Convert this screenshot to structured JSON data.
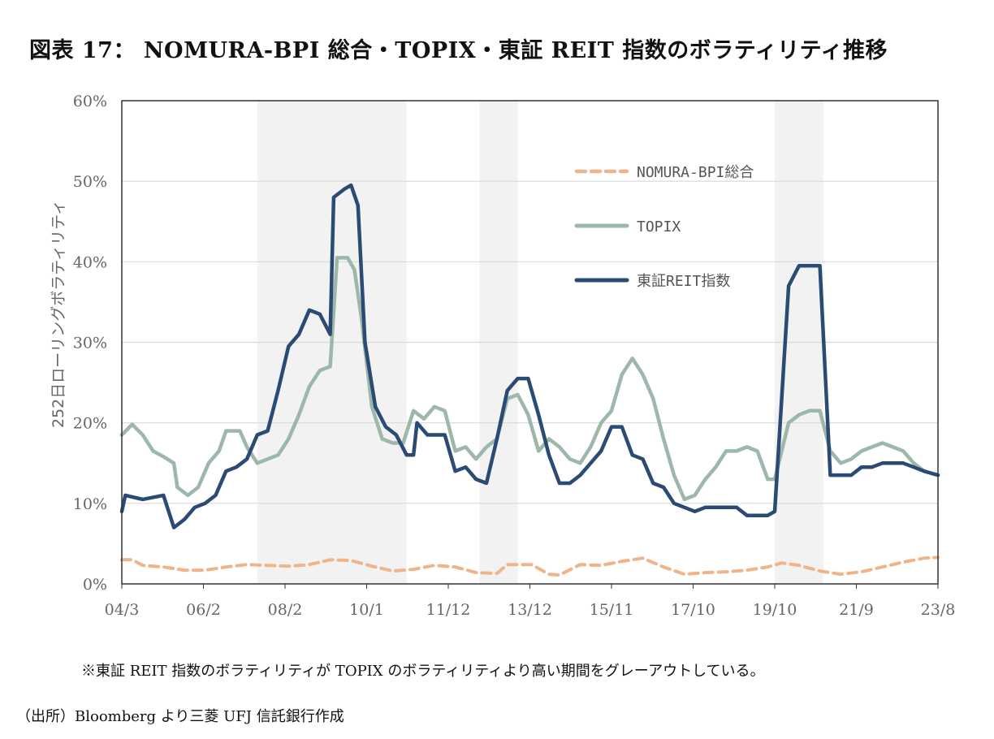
{
  "header": {
    "title": "図表 17： NOMURA-BPI 総合・TOPIX・東証 REIT 指数のボラティリティ推移"
  },
  "footer": {
    "note": "※東証 REIT 指数のボラティリティが TOPIX のボラティリティより高い期間をグレーアウトしている。",
    "source": "（出所）Bloomberg より三菱 UFJ 信託銀行作成"
  },
  "colors": {
    "nomura": "#efb48a",
    "topix": "#9db8aa",
    "reit": "#2b4a74",
    "shade": "#f2f2f2",
    "grid": "#d9d9d9"
  },
  "chart_data": {
    "type": "line",
    "title": "図表 17： NOMURA-BPI 総合・TOPIX・東証 REIT 指数のボラティリティ推移",
    "xlabel": "",
    "ylabel": "252日ローリングボラティリティ",
    "x_ticks": [
      "04/3",
      "06/2",
      "08/2",
      "10/1",
      "11/12",
      "13/12",
      "15/11",
      "17/10",
      "19/10",
      "21/9",
      "23/8"
    ],
    "x_range": [
      "2004-03",
      "2023-10"
    ],
    "ylim": [
      0,
      60
    ],
    "y_ticks": [
      "0%",
      "10%",
      "20%",
      "30%",
      "40%",
      "50%",
      "60%"
    ],
    "grid": true,
    "legend_position": "top-right",
    "shaded_periods": [
      [
        "2007-06",
        "2011-01"
      ],
      [
        "2012-10",
        "2013-09"
      ],
      [
        "2019-11",
        "2021-01"
      ]
    ],
    "series": [
      {
        "name": "NOMURA-BPI総合",
        "style": "dashed",
        "points": [
          [
            "2004-03",
            3.0
          ],
          [
            "2004-06",
            3.0
          ],
          [
            "2004-09",
            2.3
          ],
          [
            "2005-03",
            2.1
          ],
          [
            "2005-09",
            1.7
          ],
          [
            "2006-03",
            1.7
          ],
          [
            "2006-09",
            2.1
          ],
          [
            "2007-03",
            2.4
          ],
          [
            "2007-09",
            2.3
          ],
          [
            "2008-03",
            2.2
          ],
          [
            "2008-09",
            2.4
          ],
          [
            "2009-03",
            3.0
          ],
          [
            "2009-09",
            2.9
          ],
          [
            "2010-03",
            2.2
          ],
          [
            "2010-09",
            1.6
          ],
          [
            "2011-03",
            1.8
          ],
          [
            "2011-09",
            2.3
          ],
          [
            "2012-03",
            2.1
          ],
          [
            "2012-09",
            1.4
          ],
          [
            "2013-03",
            1.3
          ],
          [
            "2013-06",
            2.4
          ],
          [
            "2013-09",
            2.4
          ],
          [
            "2014-01",
            2.4
          ],
          [
            "2014-06",
            1.2
          ],
          [
            "2014-09",
            1.1
          ],
          [
            "2015-03",
            2.4
          ],
          [
            "2015-09",
            2.3
          ],
          [
            "2016-03",
            2.8
          ],
          [
            "2016-09",
            3.2
          ],
          [
            "2017-03",
            2.1
          ],
          [
            "2017-09",
            1.2
          ],
          [
            "2018-03",
            1.4
          ],
          [
            "2018-09",
            1.5
          ],
          [
            "2019-03",
            1.7
          ],
          [
            "2019-09",
            2.1
          ],
          [
            "2020-01",
            2.6
          ],
          [
            "2020-06",
            2.3
          ],
          [
            "2020-12",
            1.6
          ],
          [
            "2021-06",
            1.2
          ],
          [
            "2021-12",
            1.5
          ],
          [
            "2022-06",
            2.1
          ],
          [
            "2022-12",
            2.7
          ],
          [
            "2023-06",
            3.2
          ],
          [
            "2023-10",
            3.3
          ]
        ]
      },
      {
        "name": "TOPIX",
        "style": "solid",
        "points": [
          [
            "2004-03",
            18.5
          ],
          [
            "2004-06",
            19.8
          ],
          [
            "2004-09",
            18.5
          ],
          [
            "2004-12",
            16.5
          ],
          [
            "2005-03",
            15.8
          ],
          [
            "2005-06",
            15.0
          ],
          [
            "2005-07",
            12.0
          ],
          [
            "2005-10",
            11.0
          ],
          [
            "2006-01",
            12.0
          ],
          [
            "2006-04",
            15.0
          ],
          [
            "2006-07",
            16.5
          ],
          [
            "2006-09",
            19.0
          ],
          [
            "2007-01",
            19.0
          ],
          [
            "2007-03",
            17.0
          ],
          [
            "2007-06",
            15.0
          ],
          [
            "2007-09",
            15.5
          ],
          [
            "2007-12",
            16.0
          ],
          [
            "2008-03",
            18.0
          ],
          [
            "2008-06",
            21.0
          ],
          [
            "2008-09",
            24.5
          ],
          [
            "2008-12",
            26.5
          ],
          [
            "2009-03",
            27.0
          ],
          [
            "2009-05",
            40.5
          ],
          [
            "2009-08",
            40.5
          ],
          [
            "2009-10",
            39.0
          ],
          [
            "2009-12",
            33.0
          ],
          [
            "2010-03",
            22.0
          ],
          [
            "2010-06",
            18.0
          ],
          [
            "2010-09",
            17.5
          ],
          [
            "2010-12",
            17.5
          ],
          [
            "2011-03",
            21.5
          ],
          [
            "2011-06",
            20.5
          ],
          [
            "2011-09",
            22.0
          ],
          [
            "2011-12",
            21.5
          ],
          [
            "2012-03",
            16.5
          ],
          [
            "2012-06",
            17.0
          ],
          [
            "2012-09",
            15.5
          ],
          [
            "2012-12",
            17.0
          ],
          [
            "2013-03",
            18.0
          ],
          [
            "2013-06",
            23.0
          ],
          [
            "2013-09",
            23.5
          ],
          [
            "2013-12",
            21.0
          ],
          [
            "2014-03",
            16.5
          ],
          [
            "2014-06",
            18.0
          ],
          [
            "2014-09",
            17.0
          ],
          [
            "2014-12",
            15.5
          ],
          [
            "2015-03",
            15.0
          ],
          [
            "2015-06",
            17.0
          ],
          [
            "2015-09",
            20.0
          ],
          [
            "2015-12",
            21.5
          ],
          [
            "2016-03",
            26.0
          ],
          [
            "2016-06",
            28.0
          ],
          [
            "2016-09",
            26.0
          ],
          [
            "2016-12",
            23.0
          ],
          [
            "2017-03",
            18.0
          ],
          [
            "2017-06",
            13.5
          ],
          [
            "2017-09",
            10.5
          ],
          [
            "2017-12",
            11.0
          ],
          [
            "2018-03",
            13.0
          ],
          [
            "2018-06",
            14.5
          ],
          [
            "2018-09",
            16.5
          ],
          [
            "2018-12",
            16.5
          ],
          [
            "2019-03",
            17.0
          ],
          [
            "2019-06",
            16.5
          ],
          [
            "2019-09",
            13.0
          ],
          [
            "2019-11",
            13.0
          ],
          [
            "2020-03",
            20.0
          ],
          [
            "2020-06",
            21.0
          ],
          [
            "2020-09",
            21.5
          ],
          [
            "2020-12",
            21.5
          ],
          [
            "2021-03",
            16.5
          ],
          [
            "2021-06",
            15.0
          ],
          [
            "2021-09",
            15.5
          ],
          [
            "2021-12",
            16.5
          ],
          [
            "2022-03",
            17.0
          ],
          [
            "2022-06",
            17.5
          ],
          [
            "2022-09",
            17.0
          ],
          [
            "2022-12",
            16.5
          ],
          [
            "2023-03",
            15.0
          ],
          [
            "2023-06",
            14.0
          ],
          [
            "2023-10",
            13.5
          ]
        ]
      },
      {
        "name": "東証REIT指数",
        "style": "solid",
        "points": [
          [
            "2004-03",
            9.0
          ],
          [
            "2004-04",
            11.0
          ],
          [
            "2004-09",
            10.5
          ],
          [
            "2005-03",
            11.0
          ],
          [
            "2005-06",
            7.0
          ],
          [
            "2005-09",
            8.0
          ],
          [
            "2005-12",
            9.5
          ],
          [
            "2006-03",
            10.0
          ],
          [
            "2006-06",
            11.0
          ],
          [
            "2006-09",
            14.0
          ],
          [
            "2006-12",
            14.5
          ],
          [
            "2007-03",
            15.5
          ],
          [
            "2007-06",
            18.5
          ],
          [
            "2007-09",
            19.0
          ],
          [
            "2007-12",
            24.0
          ],
          [
            "2008-03",
            29.5
          ],
          [
            "2008-06",
            31.0
          ],
          [
            "2008-09",
            34.0
          ],
          [
            "2008-12",
            33.5
          ],
          [
            "2009-03",
            31.0
          ],
          [
            "2009-04",
            48.0
          ],
          [
            "2009-07",
            49.0
          ],
          [
            "2009-09",
            49.5
          ],
          [
            "2009-11",
            47.0
          ],
          [
            "2010-01",
            30.0
          ],
          [
            "2010-04",
            22.0
          ],
          [
            "2010-07",
            19.5
          ],
          [
            "2010-10",
            18.5
          ],
          [
            "2011-01",
            16.0
          ],
          [
            "2011-03",
            16.0
          ],
          [
            "2011-04",
            20.0
          ],
          [
            "2011-07",
            18.5
          ],
          [
            "2011-10",
            18.5
          ],
          [
            "2011-12",
            18.5
          ],
          [
            "2012-03",
            14.0
          ],
          [
            "2012-06",
            14.5
          ],
          [
            "2012-09",
            13.0
          ],
          [
            "2012-12",
            12.5
          ],
          [
            "2013-03",
            18.0
          ],
          [
            "2013-06",
            24.0
          ],
          [
            "2013-09",
            25.5
          ],
          [
            "2013-12",
            25.5
          ],
          [
            "2014-03",
            21.0
          ],
          [
            "2014-06",
            16.0
          ],
          [
            "2014-09",
            12.5
          ],
          [
            "2014-12",
            12.5
          ],
          [
            "2015-03",
            13.5
          ],
          [
            "2015-06",
            15.0
          ],
          [
            "2015-09",
            16.5
          ],
          [
            "2015-12",
            19.5
          ],
          [
            "2016-03",
            19.5
          ],
          [
            "2016-06",
            16.0
          ],
          [
            "2016-09",
            15.5
          ],
          [
            "2016-12",
            12.5
          ],
          [
            "2017-03",
            12.0
          ],
          [
            "2017-06",
            10.0
          ],
          [
            "2017-09",
            9.5
          ],
          [
            "2017-12",
            9.0
          ],
          [
            "2018-03",
            9.5
          ],
          [
            "2018-06",
            9.5
          ],
          [
            "2018-09",
            9.5
          ],
          [
            "2018-12",
            9.5
          ],
          [
            "2019-03",
            8.5
          ],
          [
            "2019-06",
            8.5
          ],
          [
            "2019-09",
            8.5
          ],
          [
            "2019-11",
            9.0
          ],
          [
            "2020-03",
            37.0
          ],
          [
            "2020-06",
            39.5
          ],
          [
            "2020-09",
            39.5
          ],
          [
            "2020-12",
            39.5
          ],
          [
            "2021-03",
            13.5
          ],
          [
            "2021-06",
            13.5
          ],
          [
            "2021-09",
            13.5
          ],
          [
            "2021-12",
            14.5
          ],
          [
            "2022-03",
            14.5
          ],
          [
            "2022-06",
            15.0
          ],
          [
            "2022-09",
            15.0
          ],
          [
            "2022-12",
            15.0
          ],
          [
            "2023-03",
            14.5
          ],
          [
            "2023-06",
            14.0
          ],
          [
            "2023-10",
            13.5
          ]
        ]
      }
    ]
  }
}
